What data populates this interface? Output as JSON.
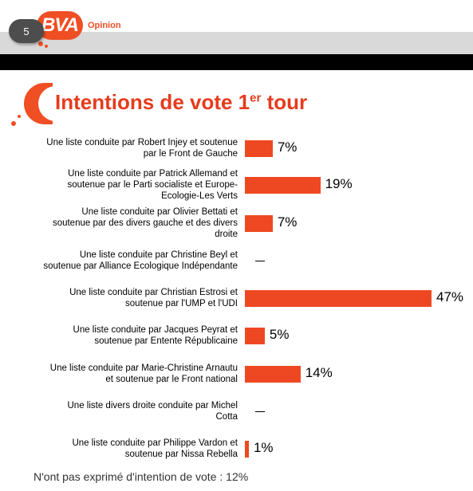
{
  "header": {
    "page_number": "5",
    "logo_text": "BVA",
    "logo_sub": "Opinion"
  },
  "title": {
    "main": "Intentions de vote 1",
    "superscript": "er",
    "suffix": " tour"
  },
  "colors": {
    "accent": "#f04e23",
    "bar": "#ee4823",
    "title": "#e63b1d",
    "header_band": "#d9d9d9"
  },
  "chart_data": {
    "type": "bar",
    "orientation": "horizontal",
    "categories": [
      "Une liste conduite par Robert Injey et soutenue par le Front de Gauche",
      "Une liste conduite par Patrick Allemand et soutenue par le Parti socialiste et Europe-Ecologie-Les Verts",
      "Une liste conduite par Olivier Bettati et soutenue par des divers gauche et des divers droite",
      "Une liste conduite par Christine Beyl et soutenue par Alliance Ecologique Indépendante",
      "Une liste conduite par Christian Estrosi et soutenue par l'UMP et l'UDI",
      "Une liste conduite par Jacques Peyrat et soutenue par Entente Républicaine",
      "Une liste conduite par Marie-Christine Arnautu et soutenue par le Front national",
      "Une liste divers droite conduite par Michel Cotta",
      "Une liste conduite par Philippe Vardon et soutenue par Nissa Rebella"
    ],
    "label_lines": [
      [
        "Une liste conduite par Robert Injey et soutenue",
        "par le Front de Gauche"
      ],
      [
        "Une liste conduite par Patrick Allemand et",
        "soutenue par le Parti socialiste et Europe-",
        "Ecologie-Les Verts"
      ],
      [
        "Une liste conduite par Olivier Bettati et",
        "soutenue par des divers gauche et des divers",
        "droite"
      ],
      [
        "Une liste conduite par Christine Beyl et",
        "soutenue par Alliance Ecologique Indépendante"
      ],
      [
        "Une liste conduite par Christian Estrosi et",
        "soutenue par l'UMP et l'UDI"
      ],
      [
        "Une liste conduite par Jacques Peyrat et",
        "soutenue par Entente Républicaine"
      ],
      [
        "Une liste conduite par Marie-Christine Arnautu",
        "et soutenue par le Front national"
      ],
      [
        "Une liste divers droite conduite par Michel",
        "Cotta"
      ],
      [
        "Une liste conduite par Philippe Vardon et",
        "soutenue par Nissa Rebella"
      ]
    ],
    "values": [
      7,
      19,
      7,
      null,
      47,
      5,
      14,
      null,
      1
    ],
    "value_labels": [
      "7%",
      "19%",
      "7%",
      "–",
      "47%",
      "5%",
      "14%",
      "–",
      "1%"
    ],
    "unit": "%",
    "xlim": [
      0,
      47
    ]
  },
  "footer": {
    "note": "N'ont pas exprimé d'intention de vote : 12%"
  }
}
